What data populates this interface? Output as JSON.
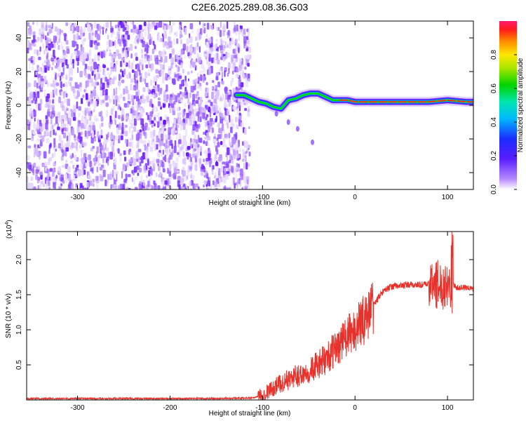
{
  "title": "C2E6.2025.289.08.36.G03",
  "colorbar": {
    "label": "Normalized spectral amplitude",
    "ticks": [
      "0.0",
      "0.2",
      "0.4",
      "0.6",
      "0.8"
    ],
    "tick_values": [
      0.0,
      0.2,
      0.4,
      0.6,
      0.8
    ],
    "range": [
      0,
      1
    ]
  },
  "chart_data": [
    {
      "type": "heatmap",
      "name": "spectrogram",
      "xlabel": "Height of straight line (km)",
      "ylabel": "Frequency (Hz)",
      "xlim": [
        -355,
        128
      ],
      "ylim": [
        -50,
        50
      ],
      "xticks": [
        -300,
        -200,
        -100,
        0,
        100
      ],
      "xtick_labels": [
        "-300",
        "-200",
        "-100",
        "0",
        "100"
      ],
      "yticks": [
        40,
        20,
        0,
        -20,
        -40
      ],
      "ytick_labels": [
        "40",
        "20",
        "0",
        "-20",
        "-40"
      ],
      "noise_region_x": [
        -355,
        -115
      ],
      "signal_track": {
        "x": [
          -128,
          -120,
          -112,
          -104,
          -96,
          -88,
          -80,
          -72,
          -64,
          -56,
          -48,
          -40,
          -32,
          -24,
          -16,
          -8,
          0,
          20,
          40,
          60,
          80,
          100,
          120,
          128
        ],
        "freq": [
          6,
          6,
          4,
          2,
          1,
          -1,
          -2,
          3,
          4,
          6,
          7,
          7,
          5,
          3,
          3,
          3,
          2,
          2,
          2,
          2,
          2,
          3,
          2,
          2
        ]
      }
    },
    {
      "type": "line",
      "name": "snr",
      "xlabel": "Height of straight line (km)",
      "ylabel": "SNR (10 * v/v)",
      "yscale_label": "(x10",
      "yscale_exponent": "4",
      "yscale_suffix": ")",
      "xlim": [
        -355,
        128
      ],
      "ylim": [
        0,
        2.4
      ],
      "xticks": [
        -300,
        -200,
        -100,
        0,
        100
      ],
      "xtick_labels": [
        "-300",
        "-200",
        "-100",
        "0",
        "100"
      ],
      "yticks": [
        0.5,
        1.0,
        1.5,
        2.0
      ],
      "ytick_labels": [
        "0.5",
        "1.0",
        "1.5",
        "2.0"
      ],
      "series": [
        {
          "name": "SNR",
          "color": "#e8312a",
          "x": [
            -355,
            -300,
            -250,
            -200,
            -150,
            -110,
            -100,
            -90,
            -80,
            -70,
            -60,
            -50,
            -40,
            -30,
            -20,
            -10,
            0,
            10,
            20,
            30,
            40,
            50,
            60,
            70,
            80,
            90,
            95,
            100,
            105,
            110,
            120,
            128
          ],
          "values": [
            0.02,
            0.02,
            0.02,
            0.02,
            0.02,
            0.03,
            0.08,
            0.16,
            0.24,
            0.3,
            0.36,
            0.42,
            0.5,
            0.6,
            0.75,
            0.88,
            1.0,
            1.15,
            1.35,
            1.55,
            1.62,
            1.63,
            1.64,
            1.64,
            1.65,
            1.65,
            1.62,
            1.7,
            1.65,
            1.6,
            1.6,
            1.58
          ]
        }
      ]
    }
  ]
}
